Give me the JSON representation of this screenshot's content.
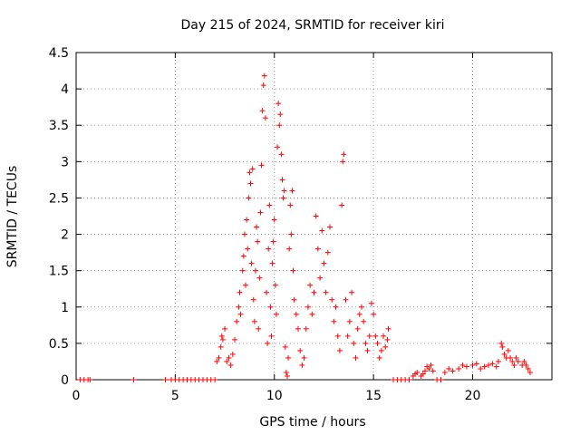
{
  "chart_data": {
    "type": "scatter",
    "title": "Day 215 of 2024, SRMTID for receiver kiri",
    "xlabel": "GPS time / hours",
    "ylabel": "SRMTID / TECUs",
    "xlim": [
      0,
      24
    ],
    "ylim": [
      0,
      4.5
    ],
    "xticks": [
      0,
      5,
      10,
      15,
      20
    ],
    "yticks": [
      0,
      0.5,
      1,
      1.5,
      2,
      2.5,
      3,
      3.5,
      4,
      4.5
    ],
    "grid": true,
    "marker": "plus",
    "color": "#ff0000",
    "series": [
      {
        "name": "SRMTID",
        "points": [
          [
            0.2,
            0
          ],
          [
            0.4,
            0
          ],
          [
            0.6,
            0
          ],
          [
            0.7,
            0
          ],
          [
            2.9,
            0
          ],
          [
            4.5,
            0
          ],
          [
            4.8,
            0
          ],
          [
            5.0,
            0
          ],
          [
            5.2,
            0
          ],
          [
            5.4,
            0
          ],
          [
            5.6,
            0
          ],
          [
            5.8,
            0
          ],
          [
            6.0,
            0
          ],
          [
            6.2,
            0
          ],
          [
            6.4,
            0
          ],
          [
            6.6,
            0
          ],
          [
            6.8,
            0
          ],
          [
            7.0,
            0
          ],
          [
            7.1,
            0.25
          ],
          [
            7.2,
            0.3
          ],
          [
            7.3,
            0.45
          ],
          [
            7.35,
            0.6
          ],
          [
            7.4,
            0.55
          ],
          [
            7.5,
            0.7
          ],
          [
            7.6,
            0.25
          ],
          [
            7.7,
            0.3
          ],
          [
            7.8,
            0.2
          ],
          [
            7.9,
            0.35
          ],
          [
            8.0,
            0.55
          ],
          [
            8.1,
            0.8
          ],
          [
            8.2,
            1.0
          ],
          [
            8.25,
            1.2
          ],
          [
            8.3,
            0.9
          ],
          [
            8.4,
            1.5
          ],
          [
            8.45,
            1.7
          ],
          [
            8.5,
            2.0
          ],
          [
            8.55,
            1.3
          ],
          [
            8.6,
            2.2
          ],
          [
            8.65,
            1.8
          ],
          [
            8.7,
            2.5
          ],
          [
            8.75,
            2.85
          ],
          [
            8.8,
            2.7
          ],
          [
            8.85,
            1.6
          ],
          [
            8.9,
            2.9
          ],
          [
            8.95,
            1.1
          ],
          [
            9.0,
            0.8
          ],
          [
            9.05,
            1.5
          ],
          [
            9.1,
            2.1
          ],
          [
            9.15,
            1.9
          ],
          [
            9.2,
            0.7
          ],
          [
            9.25,
            1.4
          ],
          [
            9.3,
            2.3
          ],
          [
            9.35,
            2.95
          ],
          [
            9.4,
            3.7
          ],
          [
            9.45,
            4.05
          ],
          [
            9.5,
            4.18
          ],
          [
            9.55,
            3.6
          ],
          [
            9.6,
            1.2
          ],
          [
            9.65,
            0.5
          ],
          [
            9.7,
            1.8
          ],
          [
            9.75,
            2.4
          ],
          [
            9.8,
            1.0
          ],
          [
            9.85,
            0.6
          ],
          [
            9.9,
            1.6
          ],
          [
            9.95,
            1.9
          ],
          [
            10.0,
            2.2
          ],
          [
            10.05,
            1.3
          ],
          [
            10.1,
            0.9
          ],
          [
            10.15,
            3.2
          ],
          [
            10.2,
            3.8
          ],
          [
            10.25,
            3.5
          ],
          [
            10.3,
            3.65
          ],
          [
            10.35,
            3.1
          ],
          [
            10.4,
            2.75
          ],
          [
            10.45,
            2.5
          ],
          [
            10.5,
            2.6
          ],
          [
            10.55,
            0.45
          ],
          [
            10.6,
            0.1
          ],
          [
            10.65,
            0.05
          ],
          [
            10.7,
            0.3
          ],
          [
            10.75,
            1.8
          ],
          [
            10.8,
            2.4
          ],
          [
            10.85,
            2.0
          ],
          [
            10.9,
            2.6
          ],
          [
            10.95,
            1.5
          ],
          [
            11.0,
            1.1
          ],
          [
            11.1,
            0.9
          ],
          [
            11.2,
            0.7
          ],
          [
            11.3,
            0.4
          ],
          [
            11.4,
            0.2
          ],
          [
            11.5,
            0.3
          ],
          [
            11.6,
            0.7
          ],
          [
            11.7,
            1.0
          ],
          [
            11.8,
            1.3
          ],
          [
            11.9,
            0.9
          ],
          [
            12.0,
            1.2
          ],
          [
            12.1,
            2.25
          ],
          [
            12.2,
            1.8
          ],
          [
            12.3,
            1.4
          ],
          [
            12.4,
            2.05
          ],
          [
            12.5,
            1.6
          ],
          [
            12.6,
            1.2
          ],
          [
            12.7,
            1.75
          ],
          [
            12.8,
            2.1
          ],
          [
            12.9,
            1.1
          ],
          [
            13.0,
            0.8
          ],
          [
            13.1,
            1.0
          ],
          [
            13.2,
            0.6
          ],
          [
            13.3,
            0.4
          ],
          [
            13.4,
            2.4
          ],
          [
            13.45,
            3.0
          ],
          [
            13.5,
            3.1
          ],
          [
            13.6,
            1.1
          ],
          [
            13.7,
            0.6
          ],
          [
            13.8,
            0.8
          ],
          [
            13.9,
            1.2
          ],
          [
            14.0,
            0.5
          ],
          [
            14.1,
            0.3
          ],
          [
            14.2,
            0.7
          ],
          [
            14.3,
            0.9
          ],
          [
            14.4,
            1.0
          ],
          [
            14.5,
            0.8
          ],
          [
            14.6,
            0.5
          ],
          [
            14.7,
            0.4
          ],
          [
            14.8,
            0.6
          ],
          [
            14.9,
            1.05
          ],
          [
            15.0,
            0.9
          ],
          [
            15.1,
            0.6
          ],
          [
            15.2,
            0.5
          ],
          [
            15.3,
            0.3
          ],
          [
            15.4,
            0.4
          ],
          [
            15.5,
            0.6
          ],
          [
            15.6,
            0.45
          ],
          [
            15.7,
            0.55
          ],
          [
            15.75,
            0.7
          ],
          [
            16.0,
            0
          ],
          [
            16.2,
            0
          ],
          [
            16.4,
            0
          ],
          [
            16.6,
            0
          ],
          [
            16.8,
            0
          ],
          [
            17.0,
            0.05
          ],
          [
            17.1,
            0.08
          ],
          [
            17.2,
            0.1
          ],
          [
            17.4,
            0.05
          ],
          [
            17.5,
            0.08
          ],
          [
            17.6,
            0.12
          ],
          [
            17.7,
            0.18
          ],
          [
            17.8,
            0.15
          ],
          [
            17.9,
            0.2
          ],
          [
            18.0,
            0.12
          ],
          [
            18.2,
            0
          ],
          [
            18.4,
            0
          ],
          [
            18.6,
            0.1
          ],
          [
            18.8,
            0.15
          ],
          [
            19.0,
            0.12
          ],
          [
            19.3,
            0.15
          ],
          [
            19.5,
            0.2
          ],
          [
            19.7,
            0.18
          ],
          [
            20.0,
            0.2
          ],
          [
            20.2,
            0.22
          ],
          [
            20.4,
            0.15
          ],
          [
            20.6,
            0.18
          ],
          [
            20.8,
            0.2
          ],
          [
            21.0,
            0.22
          ],
          [
            21.2,
            0.18
          ],
          [
            21.3,
            0.25
          ],
          [
            21.45,
            0.5
          ],
          [
            21.5,
            0.45
          ],
          [
            21.6,
            0.35
          ],
          [
            21.7,
            0.3
          ],
          [
            21.8,
            0.4
          ],
          [
            21.9,
            0.3
          ],
          [
            22.0,
            0.25
          ],
          [
            22.1,
            0.2
          ],
          [
            22.2,
            0.3
          ],
          [
            22.3,
            0.25
          ],
          [
            22.5,
            0.2
          ],
          [
            22.6,
            0.25
          ],
          [
            22.7,
            0.2
          ],
          [
            22.8,
            0.15
          ],
          [
            22.9,
            0.1
          ]
        ]
      }
    ]
  }
}
